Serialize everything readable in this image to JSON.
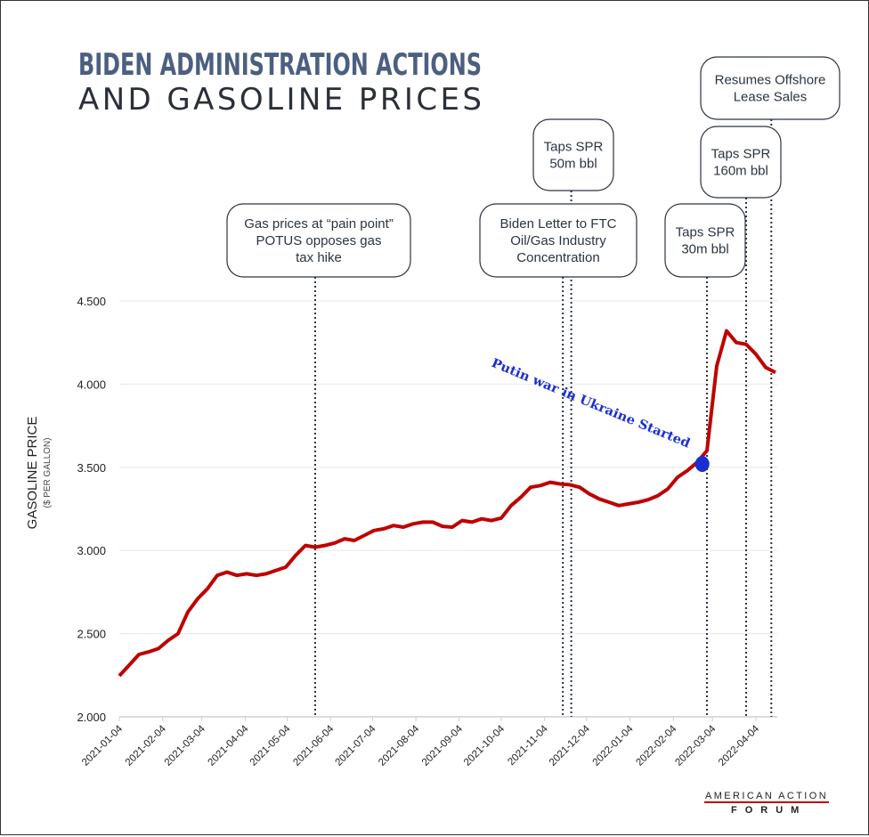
{
  "title": {
    "line1": "BIDEN ADMINISTRATION ACTIONS",
    "line2": "AND GASOLINE PRICES"
  },
  "chart_data": {
    "type": "line",
    "title": "Biden Administration Actions and Gasoline Prices",
    "xlabel": "",
    "ylabel": "GASOLINE PRICE",
    "ylabel_sub": "($ PER GALLON)",
    "ylim": [
      2.0,
      4.5
    ],
    "y_ticks": [
      "2.000",
      "2.500",
      "3.000",
      "3.500",
      "4.000",
      "4.500"
    ],
    "x_start": "2021-01-04",
    "x_interval": "weekly",
    "x_ticks": [
      "2021-01-04",
      "2021-02-04",
      "2021-03-04",
      "2021-04-04",
      "2021-05-04",
      "2021-06-04",
      "2021-07-04",
      "2021-08-04",
      "2021-09-04",
      "2021-10-04",
      "2021-11-04",
      "2021-12-04",
      "2022-01-04",
      "2022-02-04",
      "2022-03-04",
      "2022-04-04"
    ],
    "grid": "horizontal",
    "series": [
      {
        "name": "Gasoline price",
        "color": "#c00000",
        "values": [
          2.246,
          2.31,
          2.375,
          2.39,
          2.41,
          2.46,
          2.5,
          2.63,
          2.71,
          2.77,
          2.85,
          2.87,
          2.85,
          2.86,
          2.85,
          2.86,
          2.88,
          2.9,
          2.97,
          3.03,
          3.02,
          3.03,
          3.045,
          3.07,
          3.06,
          3.09,
          3.12,
          3.13,
          3.15,
          3.14,
          3.16,
          3.17,
          3.17,
          3.145,
          3.14,
          3.18,
          3.17,
          3.19,
          3.18,
          3.195,
          3.27,
          3.32,
          3.38,
          3.39,
          3.41,
          3.4,
          3.395,
          3.38,
          3.34,
          3.31,
          3.29,
          3.27,
          3.28,
          3.29,
          3.305,
          3.33,
          3.37,
          3.44,
          3.48,
          3.53,
          3.6,
          4.11,
          4.32,
          4.25,
          4.24,
          4.18,
          4.1,
          4.07
        ]
      }
    ],
    "events": [
      {
        "date": "2021-05-24",
        "lines": [
          "Gas prices at “pain point”",
          "POTUS opposes gas",
          "tax hike"
        ]
      },
      {
        "date": "2021-11-17",
        "lines": [
          "Biden Letter to FTC",
          "Oil/Gas Industry",
          "Concentration"
        ]
      },
      {
        "date": "2021-11-23",
        "lines": [
          "Taps SPR",
          "50m bbl"
        ]
      },
      {
        "date": "2022-02-28",
        "lines": [
          "Taps SPR",
          "30m bbl"
        ]
      },
      {
        "date": "2022-03-28",
        "lines": [
          "Taps SPR",
          "160m bbl"
        ]
      },
      {
        "date": "2022-04-15",
        "lines": [
          "Resumes Offshore",
          "Lease Sales"
        ]
      }
    ],
    "annotation": {
      "text": "Putin war in Ukraine Started",
      "date": "2022-02-24",
      "value": 3.52,
      "color": "#1a2fd0"
    }
  },
  "logo": {
    "line1": "AMERICAN ACTION",
    "line2": "FORUM",
    "accent": "#c00000"
  }
}
